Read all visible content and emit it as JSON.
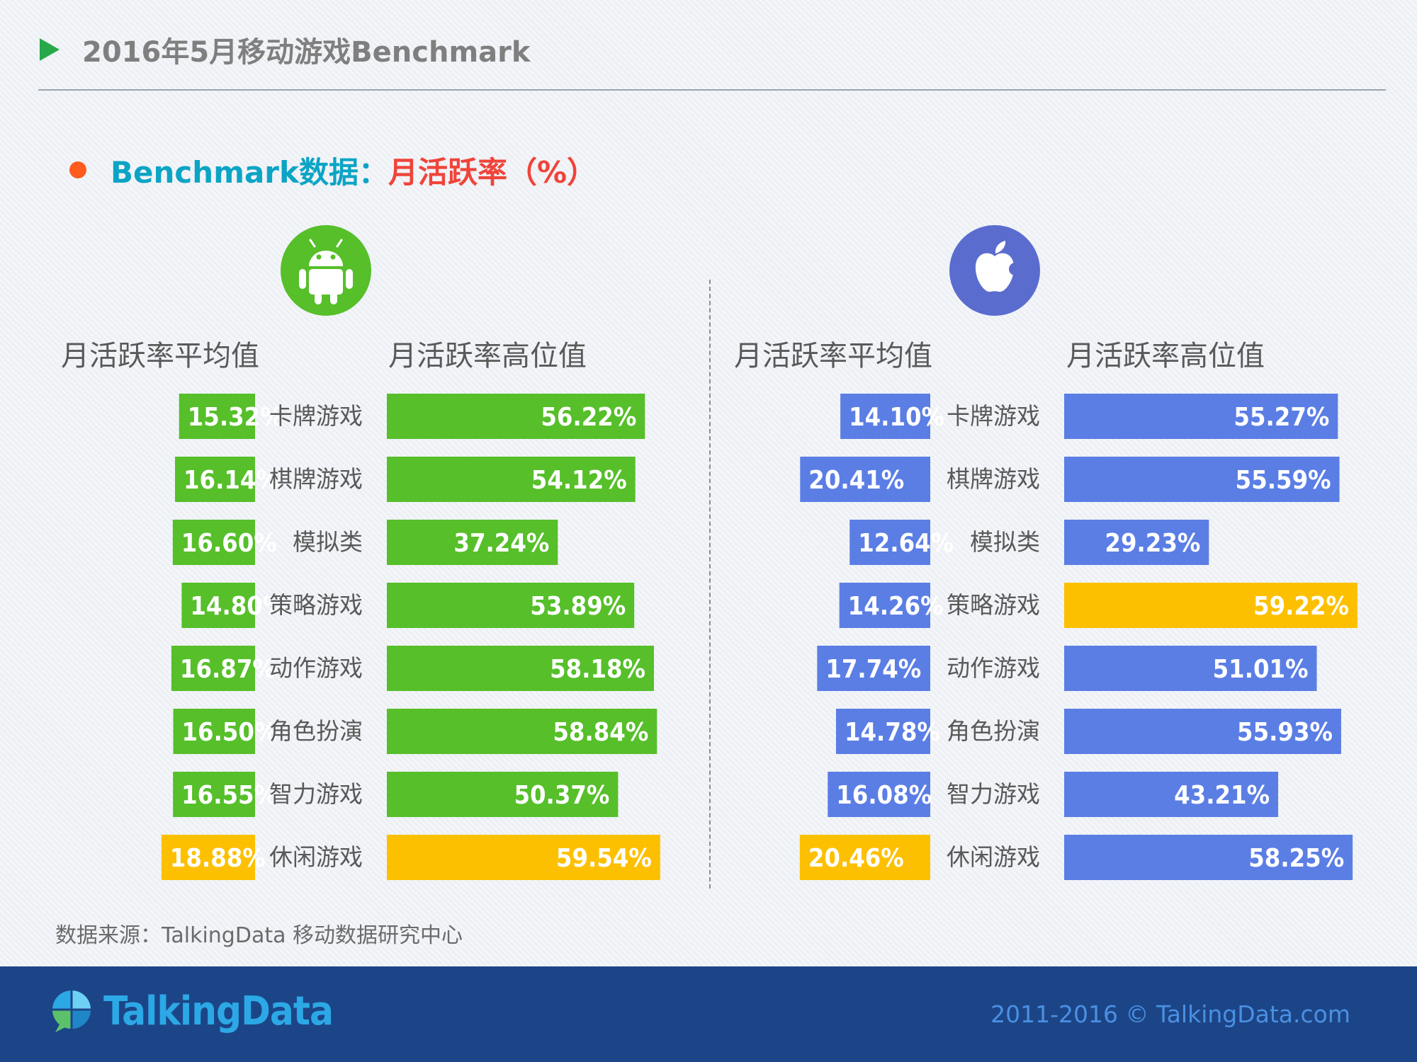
{
  "header": {
    "title": "2016年5月移动游戏Benchmark"
  },
  "subtitle": {
    "prefix": "Benchmark数据：",
    "metric": "月活跃率（%）"
  },
  "colors": {
    "android": "#56bf2a",
    "ios": "#5b7ee5",
    "highlight": "#fdc000"
  },
  "chart_data": [
    {
      "type": "bar",
      "platform": "android",
      "icon": "android-icon",
      "categories": [
        "卡牌游戏",
        "棋牌游戏",
        "模拟类",
        "策略游戏",
        "动作游戏",
        "角色扮演",
        "智力游戏",
        "休闲游戏"
      ],
      "series": [
        {
          "name": "月活跃率平均值",
          "values": [
            15.32,
            16.14,
            16.6,
            14.8,
            16.87,
            16.5,
            16.55,
            18.88
          ],
          "highlight_index": 7
        },
        {
          "name": "月活跃率高位值",
          "values": [
            56.22,
            54.12,
            37.24,
            53.89,
            58.18,
            58.84,
            50.37,
            59.54
          ],
          "highlight_index": 7
        }
      ]
    },
    {
      "type": "bar",
      "platform": "ios",
      "icon": "apple-icon",
      "categories": [
        "卡牌游戏",
        "棋牌游戏",
        "模拟类",
        "策略游戏",
        "动作游戏",
        "角色扮演",
        "智力游戏",
        "休闲游戏"
      ],
      "series": [
        {
          "name": "月活跃率平均值",
          "values": [
            14.1,
            20.41,
            12.64,
            14.26,
            17.74,
            14.78,
            16.08,
            20.46
          ],
          "highlight_index": 7
        },
        {
          "name": "月活跃率高位值",
          "values": [
            55.27,
            55.59,
            29.23,
            59.22,
            51.01,
            55.93,
            43.21,
            58.25
          ],
          "highlight_index": 3
        }
      ]
    }
  ],
  "source": "数据来源：TalkingData 移动数据研究中心",
  "footer": {
    "brand": "TalkingData",
    "copyright": "2011-2016 © TalkingData.com"
  }
}
